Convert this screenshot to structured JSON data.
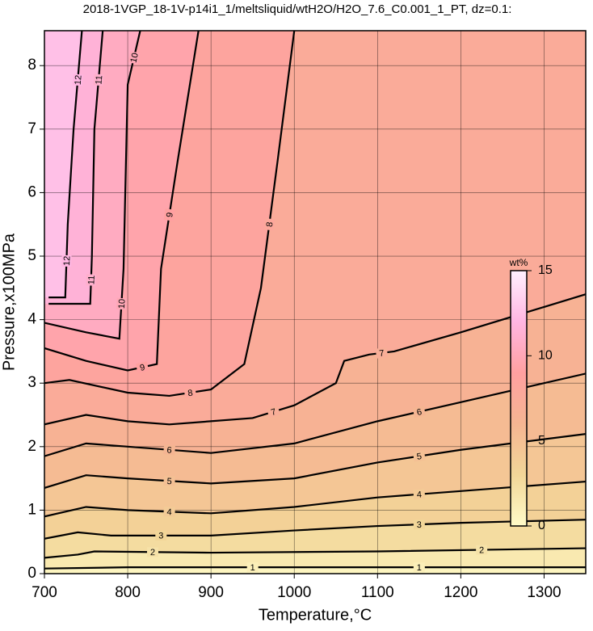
{
  "chart_data": {
    "type": "contour",
    "title": "2018-1VGP_18-1V-p14i1_1/meltsliquid/wtH2O/H2O_7.6_C0.001_1_PT, dz=0.1:",
    "x_label": "Temperature,°C",
    "y_label": "Pressure,x100MPa",
    "xlim": [
      700,
      1350
    ],
    "ylim": [
      0,
      8.55
    ],
    "xticks": [
      700,
      800,
      900,
      1000,
      1100,
      1200,
      1300
    ],
    "yticks": [
      0,
      1,
      2,
      3,
      4,
      5,
      6,
      7,
      8
    ],
    "grid": true,
    "colorbar": {
      "label": "wt%",
      "clim": [
        0,
        15
      ],
      "ticks": [
        0,
        5,
        10,
        15
      ],
      "colors": [
        "#fffbc8",
        "#f2d698",
        "#f5b592",
        "#ffa0a0",
        "#ffb6e2",
        "#fff0ff"
      ]
    },
    "contours": [
      {
        "level": 1,
        "x": [
          700,
          800,
          900,
          1000,
          1100,
          1200,
          1350
        ],
        "y": [
          0.08,
          0.1,
          0.1,
          0.1,
          0.1,
          0.1,
          0.1
        ]
      },
      {
        "level": 2,
        "x": [
          700,
          740,
          760,
          900,
          1100,
          1350
        ],
        "y": [
          0.25,
          0.3,
          0.35,
          0.33,
          0.35,
          0.4
        ]
      },
      {
        "level": 3,
        "x": [
          700,
          740,
          780,
          900,
          1000,
          1100,
          1200,
          1350
        ],
        "y": [
          0.55,
          0.65,
          0.6,
          0.6,
          0.68,
          0.75,
          0.8,
          0.85
        ]
      },
      {
        "level": 4,
        "x": [
          700,
          750,
          800,
          900,
          1000,
          1100,
          1200,
          1350
        ],
        "y": [
          0.9,
          1.05,
          1.0,
          0.95,
          1.05,
          1.2,
          1.3,
          1.45
        ]
      },
      {
        "level": 5,
        "x": [
          700,
          750,
          800,
          900,
          1000,
          1100,
          1200,
          1350
        ],
        "y": [
          1.35,
          1.55,
          1.5,
          1.42,
          1.5,
          1.75,
          1.95,
          2.2
        ]
      },
      {
        "level": 6,
        "x": [
          700,
          750,
          800,
          900,
          1000,
          1100,
          1200,
          1350
        ],
        "y": [
          1.85,
          2.05,
          2.0,
          1.9,
          2.05,
          2.4,
          2.7,
          3.15
        ]
      },
      {
        "level": 7,
        "x": [
          700,
          750,
          800,
          850,
          950,
          1000,
          1050,
          1060,
          1090,
          1120,
          1200,
          1300,
          1350
        ],
        "y": [
          2.35,
          2.5,
          2.4,
          2.35,
          2.45,
          2.65,
          3.0,
          3.35,
          3.45,
          3.5,
          3.8,
          4.2,
          4.4
        ]
      },
      {
        "level": 8,
        "x": [
          700,
          730,
          800,
          850,
          900,
          940,
          960,
          980,
          1000
        ],
        "y": [
          3.0,
          3.05,
          2.85,
          2.8,
          2.9,
          3.3,
          4.5,
          6.5,
          8.55
        ]
      },
      {
        "level": 9,
        "x": [
          700,
          750,
          800,
          835,
          840,
          860,
          885
        ],
        "y": [
          3.55,
          3.35,
          3.2,
          3.3,
          4.8,
          6.5,
          8.55
        ]
      },
      {
        "level": 10,
        "x": [
          700,
          750,
          790,
          795,
          800,
          815
        ],
        "y": [
          3.95,
          3.8,
          3.7,
          4.8,
          7.7,
          8.55
        ]
      },
      {
        "level": 11,
        "x": [
          705,
          755,
          757,
          760,
          770
        ],
        "y": [
          4.25,
          4.25,
          5.0,
          7.0,
          8.55
        ]
      },
      {
        "level": 12,
        "x": [
          705,
          725,
          728,
          735,
          745
        ],
        "y": [
          4.35,
          4.35,
          5.5,
          7.0,
          8.55
        ]
      }
    ]
  }
}
